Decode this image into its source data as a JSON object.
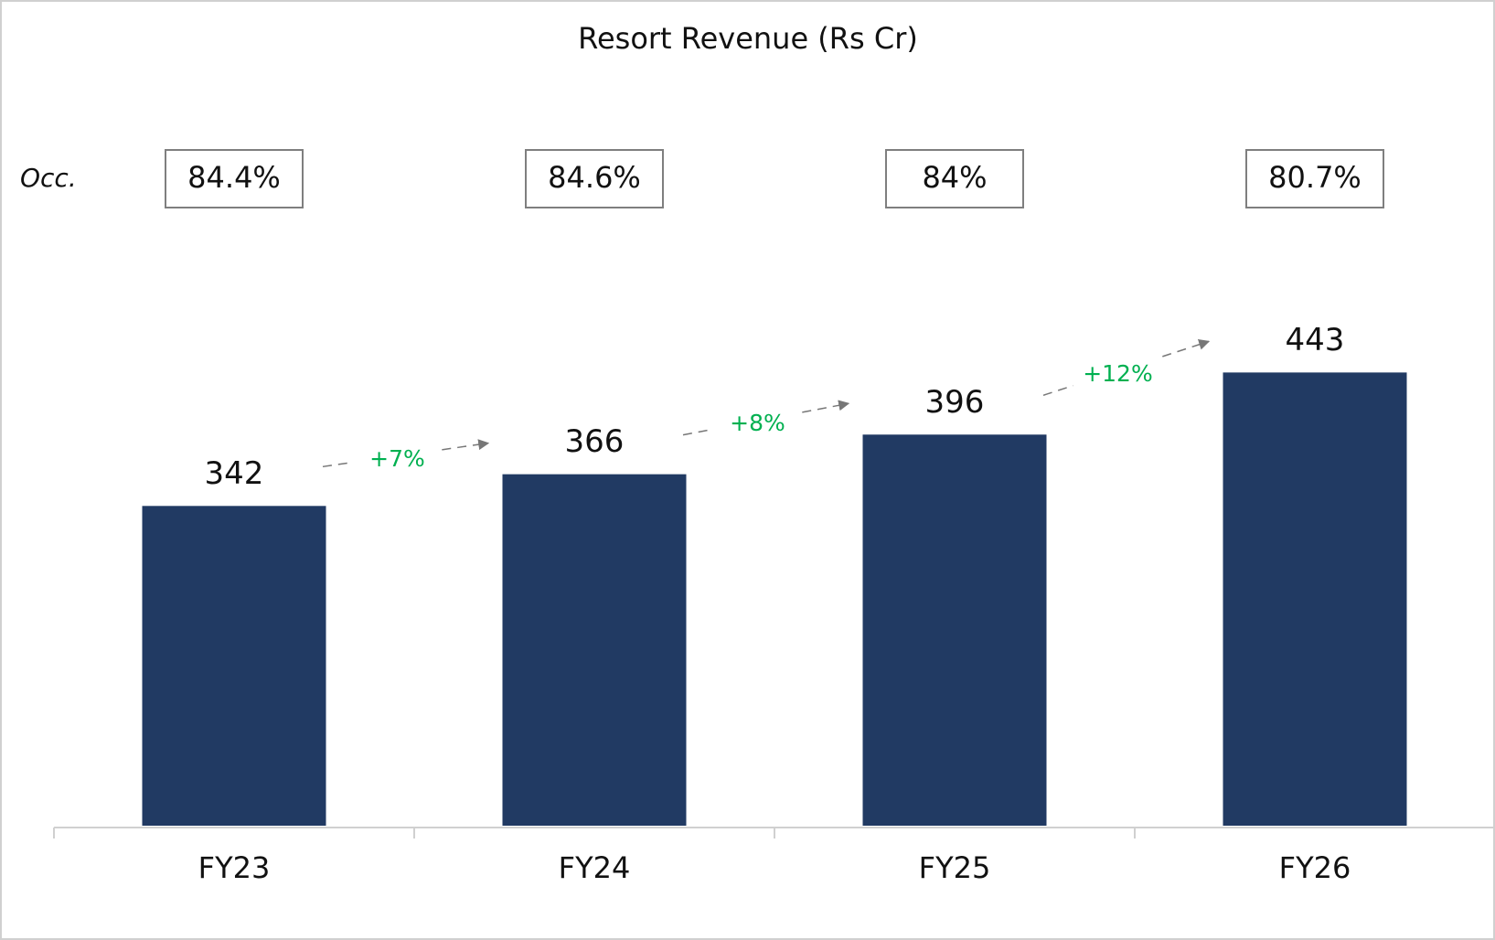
{
  "chart_data": {
    "type": "bar",
    "title": "Resort Revenue (Rs Cr)",
    "categories": [
      "FY23",
      "FY24",
      "FY25",
      "FY26"
    ],
    "values": [
      342,
      366,
      396,
      443
    ],
    "color": "#213a63",
    "ylim": [
      100,
      500
    ],
    "occupancy": {
      "label": "Occ.",
      "values": [
        84.4,
        84.6,
        84,
        80.7
      ],
      "value_labels": [
        "84.4%",
        "84.6%",
        "84%",
        "80.7%"
      ]
    },
    "growth": {
      "values": [
        7,
        8,
        12
      ],
      "value_labels": [
        "+7%",
        "+8%",
        "+12%"
      ],
      "color": "#00b050"
    }
  }
}
